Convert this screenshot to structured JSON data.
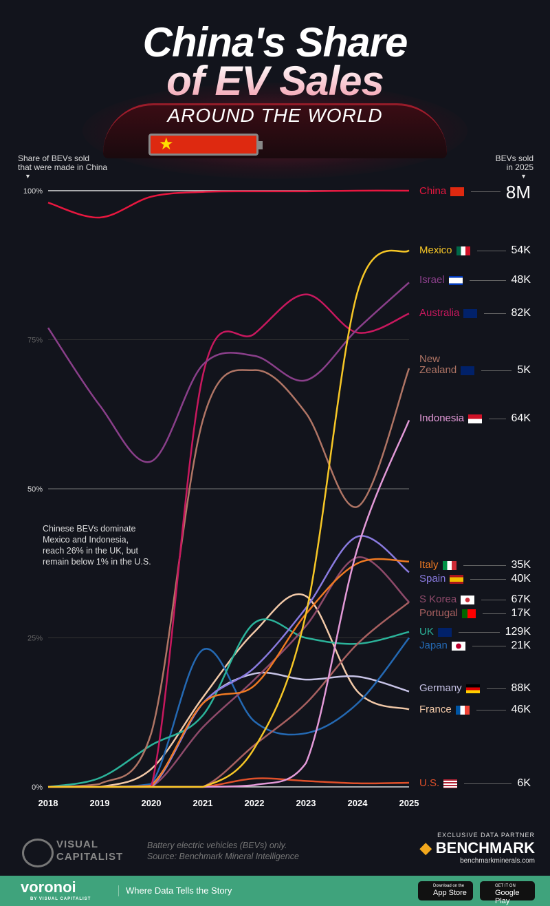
{
  "header": {
    "title_line1": "China's Share",
    "title_line2": "of EV Sales",
    "subtitle": "AROUND THE WORLD"
  },
  "left_axis_note": {
    "line1": "Share of BEVs sold",
    "line2": "that were made in China"
  },
  "right_axis_note": {
    "line1": "BEVs sold",
    "line2": "in 2025"
  },
  "annotation": [
    "Chinese BEVs dominate",
    "Mexico and Indonesia,",
    "reach 26% in the UK, but",
    "remain below 1% in the U.S."
  ],
  "chart_data": {
    "type": "line",
    "title": "China's Share of EV Sales Around the World",
    "ylabel": "Share of BEVs sold that were made in China",
    "x": [
      2018,
      2019,
      2020,
      2021,
      2022,
      2023,
      2024,
      2025
    ],
    "xticks": [
      "2018",
      "2019",
      "2020",
      "2021",
      "2022",
      "2023",
      "2024",
      "2025"
    ],
    "ylim": [
      0,
      100
    ],
    "yticks": [
      {
        "v": 0,
        "label": "0%"
      },
      {
        "v": 25,
        "label": "25%"
      },
      {
        "v": 50,
        "label": "50%"
      },
      {
        "v": 75,
        "label": "75%"
      },
      {
        "v": 100,
        "label": "100%"
      }
    ],
    "grid": true,
    "series": [
      {
        "name": "China",
        "sold_2025": "8M",
        "color": "#e8173f",
        "values": [
          98,
          95.5,
          99,
          99.8,
          99.9,
          99.9,
          100,
          100
        ]
      },
      {
        "name": "Mexico",
        "sold_2025": "54K",
        "color": "#f7c726",
        "values": [
          0,
          0,
          0,
          0,
          6.5,
          29,
          83,
          90
        ]
      },
      {
        "name": "Israel",
        "sold_2025": "48K",
        "color": "#8a3f8a",
        "values": [
          77,
          64,
          54.6,
          70.8,
          72.3,
          68.2,
          76.8,
          84.6
        ]
      },
      {
        "name": "Australia",
        "sold_2025": "82K",
        "color": "#c8185e",
        "values": [
          0,
          0,
          0,
          69,
          76,
          82.6,
          76.2,
          79.4
        ]
      },
      {
        "name": "New Zealand",
        "sold_2025": "5K",
        "color": "#b07565",
        "values": [
          0,
          0.5,
          9,
          61.5,
          69.9,
          62.7,
          47,
          70.2
        ]
      },
      {
        "name": "Indonesia",
        "sold_2025": "64K",
        "color": "#e39ad8",
        "values": [
          0,
          0,
          0,
          0,
          0.3,
          4,
          40,
          61.5
        ]
      },
      {
        "name": "Italy",
        "sold_2025": "35K",
        "color": "#f07a22",
        "values": [
          0,
          0,
          0.2,
          14,
          17,
          29,
          37.5,
          37.8
        ]
      },
      {
        "name": "Spain",
        "sold_2025": "40K",
        "color": "#8a7be0",
        "values": [
          0,
          0,
          0,
          14,
          20,
          30,
          42,
          36
        ]
      },
      {
        "name": "S Korea",
        "sold_2025": "67K",
        "color": "#8e4a6a",
        "values": [
          0,
          0,
          0,
          10,
          18,
          27,
          38.5,
          31
        ]
      },
      {
        "name": "Portugal",
        "sold_2025": "17K",
        "color": "#a86060",
        "values": [
          0,
          0,
          0,
          0,
          7,
          14,
          24,
          31
        ]
      },
      {
        "name": "UK",
        "sold_2025": "129K",
        "color": "#2bb39a",
        "values": [
          0,
          1.5,
          7,
          12,
          27.5,
          25,
          24,
          26
        ]
      },
      {
        "name": "Japan",
        "sold_2025": "21K",
        "color": "#2469b3",
        "values": [
          0,
          0,
          0.5,
          23,
          11,
          9,
          14,
          25
        ]
      },
      {
        "name": "Germany",
        "sold_2025": "88K",
        "color": "#c7c3e6",
        "values": [
          0,
          0,
          0.3,
          14,
          19,
          18,
          18.5,
          16
        ]
      },
      {
        "name": "France",
        "sold_2025": "46K",
        "color": "#f2c9a8",
        "values": [
          0,
          0,
          3,
          15,
          26,
          32,
          16,
          13
        ]
      },
      {
        "name": "U.S.",
        "sold_2025": "6K",
        "color": "#e0502a",
        "values": [
          0,
          0,
          0,
          0,
          1.4,
          1,
          0.6,
          0.7
        ]
      }
    ]
  },
  "labels": {
    "China": "China",
    "Mexico": "Mexico",
    "Israel": "Israel",
    "Australia": "Australia",
    "NZ1": "New",
    "NZ2": "Zealand",
    "Indonesia": "Indonesia",
    "Italy": "Italy",
    "Spain": "Spain",
    "SKorea": "S Korea",
    "Portugal": "Portugal",
    "UK": "UK",
    "Japan": "Japan",
    "Germany": "Germany",
    "France": "France",
    "US": "U.S."
  },
  "footer": {
    "brand": "VISUAL CAPITALIST",
    "note1": "Battery electric vehicles (BEVs) only.",
    "note2": "Source: Benchmark Mineral Intelligence",
    "partner_label": "EXCLUSIVE DATA PARTNER",
    "partner_name": "BENCHMARK",
    "partner_url": "benchmarkminerals.com"
  },
  "bottom_bar": {
    "logo": "voronoi",
    "logo_sub": "BY VISUAL CAPITALIST",
    "tagline": "Where Data Tells the Story",
    "appstore_small": "Download on the",
    "appstore": "App Store",
    "play_small": "GET IT ON",
    "play": "Google Play"
  }
}
